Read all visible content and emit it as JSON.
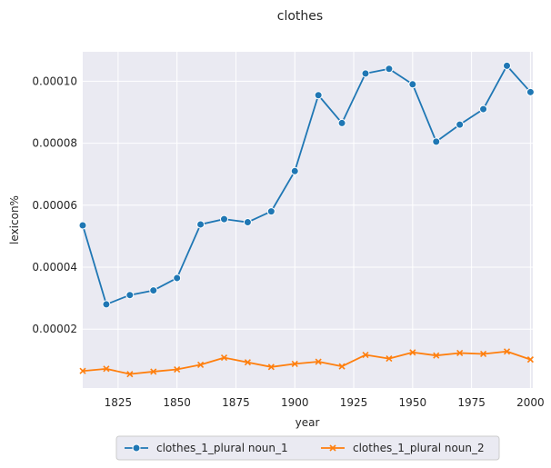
{
  "chart_data": {
    "type": "line",
    "title": "clothes",
    "xlabel": "year",
    "ylabel": "lexicon%",
    "xlim": [
      1810,
      2001
    ],
    "ylim": [
      1e-06,
      0.0001095
    ],
    "xticks": [
      1825,
      1850,
      1875,
      1900,
      1925,
      1950,
      1975,
      2000
    ],
    "xtick_labels": [
      "1825",
      "1850",
      "1875",
      "1900",
      "1925",
      "1950",
      "1975",
      "2000"
    ],
    "yticks": [
      2e-05,
      4e-05,
      6e-05,
      8e-05,
      0.0001
    ],
    "ytick_labels": [
      "0.00002",
      "0.00004",
      "0.00006",
      "0.00008",
      "0.00010"
    ],
    "grid": true,
    "legend_position": "bottom-center",
    "background": "#eaeaf2",
    "x": [
      1810,
      1820,
      1830,
      1840,
      1850,
      1860,
      1870,
      1880,
      1890,
      1900,
      1910,
      1920,
      1930,
      1940,
      1950,
      1960,
      1970,
      1980,
      1990,
      2000
    ],
    "series": [
      {
        "name": "clothes_1_plural noun_1",
        "color": "#1f77b4",
        "marker": "circle",
        "values": [
          5.35e-05,
          2.8e-05,
          3.1e-05,
          3.25e-05,
          3.65e-05,
          5.38e-05,
          5.55e-05,
          5.45e-05,
          5.8e-05,
          7.1e-05,
          9.55e-05,
          8.65e-05,
          0.0001025,
          0.000104,
          9.9e-05,
          8.05e-05,
          8.6e-05,
          9.1e-05,
          0.000105,
          9.65e-05
        ]
      },
      {
        "name": "clothes_1_plural noun_2",
        "color": "#ff7f0e",
        "marker": "x",
        "values": [
          6.5e-06,
          7.2e-06,
          5.5e-06,
          6.3e-06,
          7e-06,
          8.5e-06,
          1.08e-05,
          9.3e-06,
          7.8e-06,
          8.8e-06,
          9.5e-06,
          8e-06,
          1.17e-05,
          1.05e-05,
          1.25e-05,
          1.15e-05,
          1.23e-05,
          1.2e-05,
          1.28e-05,
          1.02e-05
        ]
      }
    ]
  }
}
